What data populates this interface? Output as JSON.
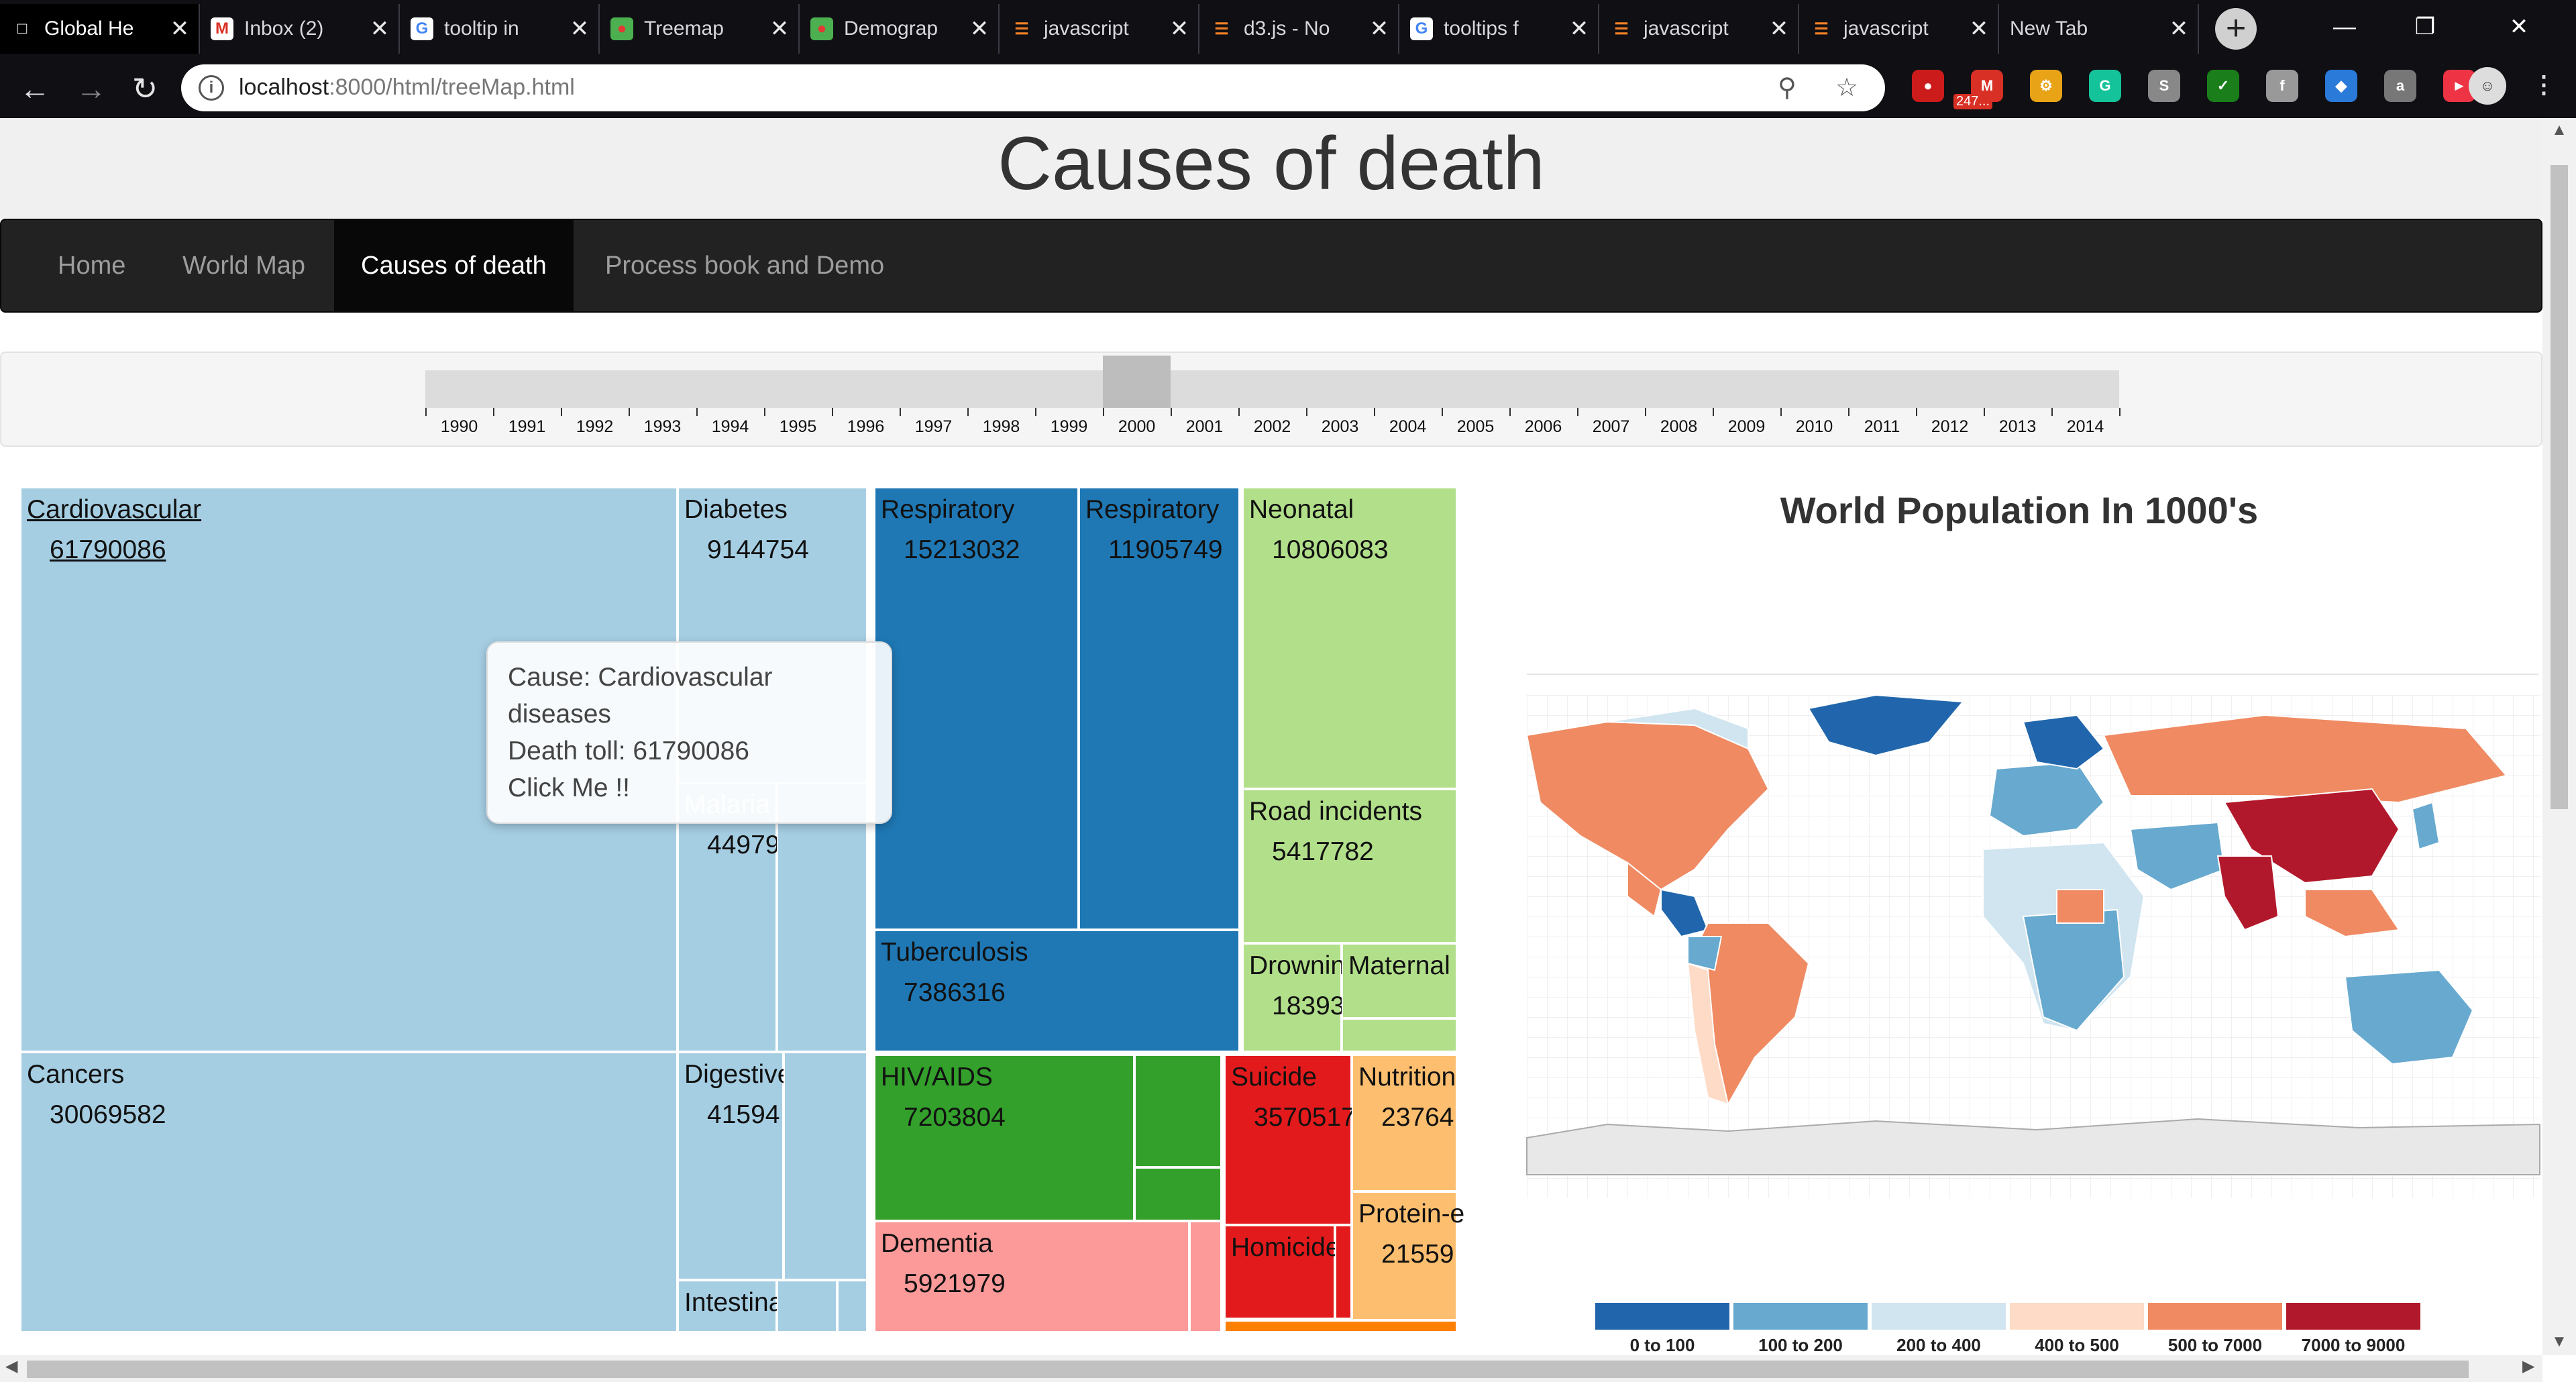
{
  "browser": {
    "tabs": [
      {
        "title": "Global He",
        "icon": "page-icon",
        "active": true
      },
      {
        "title": "Inbox (2)",
        "icon": "gmail-icon"
      },
      {
        "title": "tooltip in",
        "icon": "google-icon"
      },
      {
        "title": "Treemap",
        "icon": "chart-icon"
      },
      {
        "title": "Demograp",
        "icon": "chart-icon"
      },
      {
        "title": "javascript",
        "icon": "stackoverflow-icon"
      },
      {
        "title": "d3.js - No",
        "icon": "stackoverflow-icon"
      },
      {
        "title": "tooltips f",
        "icon": "google-icon"
      },
      {
        "title": "javascript",
        "icon": "stackoverflow-icon"
      },
      {
        "title": "javascript",
        "icon": "stackoverflow-icon"
      },
      {
        "title": "New Tab",
        "icon": "none"
      }
    ],
    "url_host": "localhost",
    "url_rest": ":8000/html/treeMap.html",
    "mail_badge": "247..."
  },
  "page": {
    "title": "Causes of death",
    "nav": [
      "Home",
      "World Map",
      "Causes of death",
      "Process book and Demo"
    ],
    "nav_active": 2
  },
  "slider": {
    "years": [
      "1990",
      "1991",
      "1992",
      "1993",
      "1994",
      "1995",
      "1996",
      "1997",
      "1998",
      "1999",
      "2000",
      "2001",
      "2002",
      "2003",
      "2004",
      "2005",
      "2006",
      "2007",
      "2008",
      "2009",
      "2010",
      "2011",
      "2012",
      "2013",
      "2014"
    ],
    "selected": "2000"
  },
  "treemap": {
    "colors": {
      "light_blue": "#a6cee3",
      "dark_blue": "#1f78b4",
      "light_green": "#b2df8a",
      "green": "#33a02c",
      "pink": "#fb9a99",
      "red": "#e31a1c",
      "peach": "#fdbf6f",
      "orange": "#ff7f00"
    },
    "nodes": {
      "cardio": {
        "label": "Cardiovascular",
        "value": "61790086"
      },
      "cancers": {
        "label": "Cancers",
        "value": "30069582"
      },
      "diabetes": {
        "label": "Diabetes",
        "value": "9144754"
      },
      "malaria": {
        "label": "Malaria",
        "value": "44979"
      },
      "digestive": {
        "label": "Digestive",
        "value": "41594"
      },
      "intestinal": {
        "label": "Intestina",
        "value": ""
      },
      "respiratory1": {
        "label": "Respiratory",
        "value": "15213032"
      },
      "respiratory2": {
        "label": "Respiratory",
        "value": "11905749"
      },
      "tuberculosis": {
        "label": "Tuberculosis",
        "value": "7386316"
      },
      "neonatal": {
        "label": "Neonatal",
        "value": "10806083"
      },
      "road": {
        "label": "Road incidents",
        "value": "5417782"
      },
      "drowning": {
        "label": "Drownin",
        "value": "18393"
      },
      "maternal": {
        "label": "Maternal",
        "value": ""
      },
      "hiv": {
        "label": "HIV/AIDS",
        "value": "7203804"
      },
      "dementia": {
        "label": "Dementia",
        "value": "5921979"
      },
      "suicide": {
        "label": "Suicide",
        "value": "3570517"
      },
      "homicide": {
        "label": "Homicide",
        "value": ""
      },
      "nutrition": {
        "label": "Nutrition",
        "value": "23764"
      },
      "protein": {
        "label": "Protein-e",
        "value": "21559"
      }
    },
    "tooltip": {
      "line1": "Cause: Cardiovascular",
      "line2": "diseases",
      "line3": "Death toll: 61790086",
      "line4": "Click Me !!"
    }
  },
  "map": {
    "title": "World Population In 1000's",
    "legend": [
      {
        "color": "#2166ac",
        "label": "0 to 100"
      },
      {
        "color": "#67a9cf",
        "label": "100 to 200"
      },
      {
        "color": "#d1e5f0",
        "label": "200 to 400"
      },
      {
        "color": "#fddbc7",
        "label": "400 to 500"
      },
      {
        "color": "#ef8a62",
        "label": "500 to 7000"
      },
      {
        "color": "#b2182b",
        "label": "7000 to 9000"
      }
    ]
  }
}
